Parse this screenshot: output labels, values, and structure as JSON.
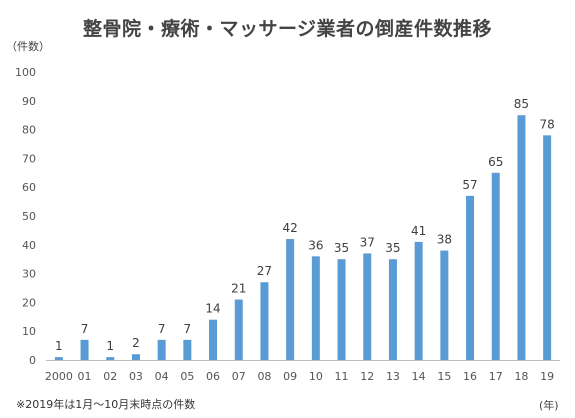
{
  "chart_data": {
    "type": "bar",
    "title": "整骨院・療術・マッサージ業者の倒産件数推移",
    "y_unit_label": "（件数）",
    "x_unit_label": "(年)",
    "footnote": "※2019年は1月～10月末時点の件数",
    "categories": [
      "2000",
      "01",
      "02",
      "03",
      "04",
      "05",
      "06",
      "07",
      "08",
      "09",
      "10",
      "11",
      "12",
      "13",
      "14",
      "15",
      "16",
      "17",
      "18",
      "19"
    ],
    "values": [
      1,
      7,
      1,
      2,
      7,
      7,
      14,
      21,
      27,
      42,
      36,
      35,
      37,
      35,
      41,
      38,
      57,
      65,
      85,
      78
    ],
    "ylim": [
      0,
      100
    ],
    "yticks": [
      0,
      10,
      20,
      30,
      40,
      50,
      60,
      70,
      80,
      90,
      100
    ],
    "grid": false,
    "bar_color": "#5b9bd5",
    "axis_color": "#bfbfbf"
  }
}
